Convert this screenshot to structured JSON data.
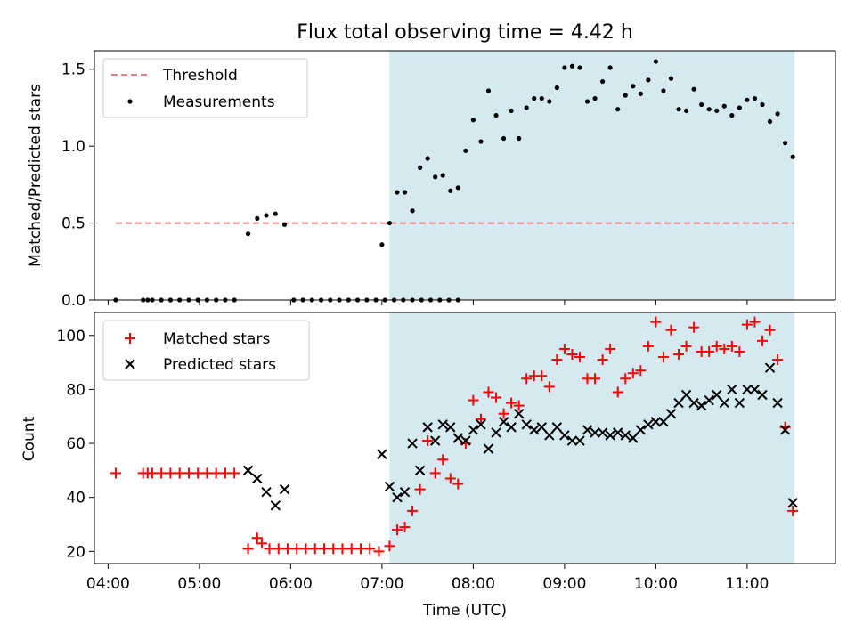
{
  "title": "Flux total observing time = 4.42 h",
  "chart_data": [
    {
      "type": "scatter",
      "title": "Flux total observing time = 4.42 h",
      "xlabel": "",
      "ylabel": "Matched/Predicted stars",
      "xlim": [
        "03:51",
        "11:58"
      ],
      "ylim": [
        0,
        1.62
      ],
      "yticks": [
        0.0,
        0.5,
        1.0,
        1.5
      ],
      "ytick_labels": [
        "0.0",
        "0.5",
        "1.0",
        "1.5"
      ],
      "shaded_interval": [
        "07:05",
        "11:31"
      ],
      "shade_color": "#d4eaf0",
      "legend_position": "upper left",
      "legend": [
        "Threshold",
        "Measurements"
      ],
      "threshold": {
        "name": "Threshold",
        "y": 0.5,
        "x": [
          "04:05",
          "11:31"
        ],
        "color": "#f08080",
        "style": "dashed"
      },
      "series": [
        {
          "name": "Measurements",
          "marker": "dot",
          "color": "#000000",
          "points": [
            [
              "04:05",
              0
            ],
            [
              "04:23",
              0
            ],
            [
              "04:26",
              0
            ],
            [
              "04:29",
              0
            ],
            [
              "04:35",
              0
            ],
            [
              "04:41",
              0
            ],
            [
              "04:47",
              0
            ],
            [
              "04:53",
              0
            ],
            [
              "04:59",
              0
            ],
            [
              "05:05",
              0
            ],
            [
              "05:11",
              0
            ],
            [
              "05:17",
              0
            ],
            [
              "05:23",
              0
            ],
            [
              "05:32",
              0.43
            ],
            [
              "05:38",
              0.53
            ],
            [
              "05:44",
              0.55
            ],
            [
              "05:50",
              0.56
            ],
            [
              "05:56",
              0.49
            ],
            [
              "06:02",
              0
            ],
            [
              "06:08",
              0
            ],
            [
              "06:14",
              0
            ],
            [
              "06:20",
              0
            ],
            [
              "06:26",
              0
            ],
            [
              "06:32",
              0
            ],
            [
              "06:38",
              0
            ],
            [
              "06:44",
              0
            ],
            [
              "06:50",
              0
            ],
            [
              "06:56",
              0
            ],
            [
              "07:02",
              0
            ],
            [
              "07:08",
              0
            ],
            [
              "07:14",
              0
            ],
            [
              "07:20",
              0
            ],
            [
              "07:26",
              0
            ],
            [
              "07:32",
              0
            ],
            [
              "07:38",
              0
            ],
            [
              "07:44",
              0
            ],
            [
              "07:50",
              0
            ],
            [
              "07:00",
              0.36
            ],
            [
              "07:05",
              0.5
            ],
            [
              "07:10",
              0.7
            ],
            [
              "07:15",
              0.7
            ],
            [
              "07:20",
              0.58
            ],
            [
              "07:25",
              0.86
            ],
            [
              "07:30",
              0.92
            ],
            [
              "07:35",
              0.8
            ],
            [
              "07:40",
              0.81
            ],
            [
              "07:45",
              0.71
            ],
            [
              "07:50",
              0.73
            ],
            [
              "07:55",
              0.97
            ],
            [
              "08:00",
              1.17
            ],
            [
              "08:05",
              1.03
            ],
            [
              "08:10",
              1.36
            ],
            [
              "08:15",
              1.2
            ],
            [
              "08:20",
              1.05
            ],
            [
              "08:25",
              1.23
            ],
            [
              "08:30",
              1.05
            ],
            [
              "08:35",
              1.25
            ],
            [
              "08:40",
              1.31
            ],
            [
              "08:45",
              1.31
            ],
            [
              "08:50",
              1.29
            ],
            [
              "08:55",
              1.38
            ],
            [
              "09:00",
              1.51
            ],
            [
              "09:05",
              1.52
            ],
            [
              "09:10",
              1.51
            ],
            [
              "09:15",
              1.29
            ],
            [
              "09:20",
              1.31
            ],
            [
              "09:25",
              1.42
            ],
            [
              "09:30",
              1.51
            ],
            [
              "09:35",
              1.24
            ],
            [
              "09:40",
              1.33
            ],
            [
              "09:45",
              1.39
            ],
            [
              "09:50",
              1.34
            ],
            [
              "09:55",
              1.43
            ],
            [
              "10:00",
              1.55
            ],
            [
              "10:05",
              1.36
            ],
            [
              "10:10",
              1.44
            ],
            [
              "10:15",
              1.24
            ],
            [
              "10:20",
              1.23
            ],
            [
              "10:25",
              1.37
            ],
            [
              "10:30",
              1.27
            ],
            [
              "10:35",
              1.24
            ],
            [
              "10:40",
              1.23
            ],
            [
              "10:45",
              1.26
            ],
            [
              "10:50",
              1.2
            ],
            [
              "10:55",
              1.25
            ],
            [
              "11:00",
              1.3
            ],
            [
              "11:05",
              1.31
            ],
            [
              "11:10",
              1.27
            ],
            [
              "11:15",
              1.16
            ],
            [
              "11:20",
              1.21
            ],
            [
              "11:25",
              1.02
            ],
            [
              "11:30",
              0.93
            ]
          ]
        }
      ]
    },
    {
      "type": "scatter",
      "title": "",
      "xlabel": "Time (UTC)",
      "ylabel": "Count",
      "xlim": [
        "03:51",
        "11:58"
      ],
      "ylim": [
        15.5,
        108.5
      ],
      "xticks": [
        "04:00",
        "05:00",
        "06:00",
        "07:00",
        "08:00",
        "09:00",
        "10:00",
        "11:00"
      ],
      "xtick_labels": [
        "04:00",
        "05:00",
        "06:00",
        "07:00",
        "08:00",
        "09:00",
        "10:00",
        "11:00"
      ],
      "yticks": [
        20,
        40,
        60,
        80,
        100
      ],
      "ytick_labels": [
        "20",
        "40",
        "60",
        "80",
        "100"
      ],
      "shaded_interval": [
        "07:05",
        "11:31"
      ],
      "shade_color": "#d4eaf0",
      "legend_position": "upper left",
      "legend": [
        "Matched stars",
        "Predicted stars"
      ],
      "series": [
        {
          "name": "Matched stars",
          "marker": "plus",
          "color": "#ff0000",
          "points": [
            [
              "04:05",
              49
            ],
            [
              "04:23",
              49
            ],
            [
              "04:26",
              49
            ],
            [
              "04:29",
              49
            ],
            [
              "04:35",
              49
            ],
            [
              "04:41",
              49
            ],
            [
              "04:47",
              49
            ],
            [
              "04:53",
              49
            ],
            [
              "04:59",
              49
            ],
            [
              "05:05",
              49
            ],
            [
              "05:11",
              49
            ],
            [
              "05:17",
              49
            ],
            [
              "05:23",
              49
            ],
            [
              "05:32",
              21
            ],
            [
              "05:38",
              25
            ],
            [
              "05:41",
              23
            ],
            [
              "05:46",
              21
            ],
            [
              "05:52",
              21
            ],
            [
              "05:58",
              21
            ],
            [
              "06:04",
              21
            ],
            [
              "06:10",
              21
            ],
            [
              "06:16",
              21
            ],
            [
              "06:22",
              21
            ],
            [
              "06:28",
              21
            ],
            [
              "06:34",
              21
            ],
            [
              "06:40",
              21
            ],
            [
              "06:46",
              21
            ],
            [
              "06:52",
              21
            ],
            [
              "06:58",
              20
            ],
            [
              "07:05",
              22
            ],
            [
              "07:10",
              28
            ],
            [
              "07:15",
              29
            ],
            [
              "07:20",
              35
            ],
            [
              "07:25",
              43
            ],
            [
              "07:30",
              61
            ],
            [
              "07:35",
              49
            ],
            [
              "07:40",
              54
            ],
            [
              "07:45",
              47
            ],
            [
              "07:50",
              45
            ],
            [
              "07:55",
              60
            ],
            [
              "08:00",
              76
            ],
            [
              "08:05",
              69
            ],
            [
              "08:10",
              79
            ],
            [
              "08:15",
              77
            ],
            [
              "08:20",
              71
            ],
            [
              "08:25",
              75
            ],
            [
              "08:30",
              74
            ],
            [
              "08:35",
              84
            ],
            [
              "08:40",
              85
            ],
            [
              "08:45",
              85
            ],
            [
              "08:50",
              81
            ],
            [
              "08:55",
              91
            ],
            [
              "09:00",
              95
            ],
            [
              "09:05",
              93
            ],
            [
              "09:10",
              92
            ],
            [
              "09:15",
              84
            ],
            [
              "09:20",
              84
            ],
            [
              "09:25",
              91
            ],
            [
              "09:30",
              95
            ],
            [
              "09:35",
              79
            ],
            [
              "09:40",
              84
            ],
            [
              "09:45",
              86
            ],
            [
              "09:50",
              87
            ],
            [
              "09:55",
              96
            ],
            [
              "10:00",
              105
            ],
            [
              "10:05",
              92
            ],
            [
              "10:10",
              102
            ],
            [
              "10:15",
              93
            ],
            [
              "10:20",
              96
            ],
            [
              "10:25",
              103
            ],
            [
              "10:30",
              94
            ],
            [
              "10:35",
              94
            ],
            [
              "10:40",
              96
            ],
            [
              "10:45",
              95
            ],
            [
              "10:50",
              96
            ],
            [
              "10:55",
              94
            ],
            [
              "11:00",
              104
            ],
            [
              "11:05",
              105
            ],
            [
              "11:10",
              98
            ],
            [
              "11:15",
              102
            ],
            [
              "11:20",
              91
            ],
            [
              "11:25",
              66
            ],
            [
              "11:30",
              35
            ]
          ]
        },
        {
          "name": "Predicted stars",
          "marker": "x",
          "color": "#000000",
          "points": [
            [
              "05:32",
              50
            ],
            [
              "05:38",
              47
            ],
            [
              "05:44",
              42
            ],
            [
              "05:50",
              37
            ],
            [
              "05:56",
              43
            ],
            [
              "07:00",
              56
            ],
            [
              "07:05",
              44
            ],
            [
              "07:10",
              40
            ],
            [
              "07:15",
              42
            ],
            [
              "07:20",
              60
            ],
            [
              "07:25",
              50
            ],
            [
              "07:30",
              66
            ],
            [
              "07:35",
              61
            ],
            [
              "07:40",
              67
            ],
            [
              "07:45",
              66
            ],
            [
              "07:50",
              62
            ],
            [
              "07:55",
              61
            ],
            [
              "08:00",
              65
            ],
            [
              "08:05",
              67
            ],
            [
              "08:10",
              58
            ],
            [
              "08:15",
              64
            ],
            [
              "08:20",
              68
            ],
            [
              "08:25",
              66
            ],
            [
              "08:30",
              71
            ],
            [
              "08:35",
              67
            ],
            [
              "08:40",
              65
            ],
            [
              "08:45",
              66
            ],
            [
              "08:50",
              63
            ],
            [
              "08:55",
              66
            ],
            [
              "09:00",
              63
            ],
            [
              "09:05",
              61
            ],
            [
              "09:10",
              61
            ],
            [
              "09:15",
              65
            ],
            [
              "09:20",
              64
            ],
            [
              "09:25",
              64
            ],
            [
              "09:30",
              63
            ],
            [
              "09:35",
              64
            ],
            [
              "09:40",
              63
            ],
            [
              "09:45",
              62
            ],
            [
              "09:50",
              65
            ],
            [
              "09:55",
              67
            ],
            [
              "10:00",
              68
            ],
            [
              "10:05",
              68
            ],
            [
              "10:10",
              71
            ],
            [
              "10:15",
              75
            ],
            [
              "10:20",
              78
            ],
            [
              "10:25",
              75
            ],
            [
              "10:30",
              74
            ],
            [
              "10:35",
              76
            ],
            [
              "10:40",
              78
            ],
            [
              "10:45",
              75
            ],
            [
              "10:50",
              80
            ],
            [
              "10:55",
              75
            ],
            [
              "11:00",
              80
            ],
            [
              "11:05",
              80
            ],
            [
              "11:10",
              78
            ],
            [
              "11:15",
              88
            ],
            [
              "11:20",
              75
            ],
            [
              "11:25",
              65
            ],
            [
              "11:30",
              38
            ]
          ]
        }
      ]
    }
  ]
}
